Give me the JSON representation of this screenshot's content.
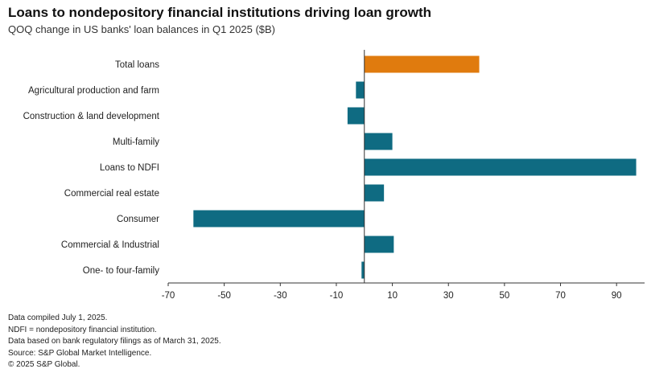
{
  "header": {
    "title": "Loans to nondepository financial institutions driving loan growth",
    "subtitle": "QOQ change in US banks' loan balances in Q1 2025 ($B)"
  },
  "chart_data": {
    "type": "bar",
    "orientation": "horizontal",
    "title": "Loans to nondepository financial institutions driving loan growth",
    "subtitle": "QOQ change in US banks' loan balances in Q1 2025 ($B)",
    "xlabel": "",
    "ylabel": "",
    "xlim": [
      -70,
      100
    ],
    "xticks": [
      -70,
      -50,
      -30,
      -10,
      10,
      30,
      50,
      70,
      90
    ],
    "grid": false,
    "legend": "none",
    "categories": [
      "Total loans",
      "Agricultural production and farm",
      "Construction & land development",
      "Multi-family",
      "Loans to NDFI",
      "Commercial real estate",
      "Consumer",
      "Commercial & Industrial",
      "One- to four-family"
    ],
    "values": [
      41,
      -3,
      -6,
      10,
      97,
      7,
      -61,
      10.5,
      -1
    ],
    "highlight_category": "Total loans",
    "colors": {
      "default": "#0f6b82",
      "highlight": "#e07b0e",
      "axis": "#333333"
    }
  },
  "footer": {
    "notes": [
      "Data compiled July 1, 2025.",
      "NDFI = nondepository financial institution.",
      "Data based on bank regulatory filings as of March 31, 2025.",
      "Source: S&P Global Market Intelligence.",
      "© 2025 S&P Global."
    ]
  }
}
